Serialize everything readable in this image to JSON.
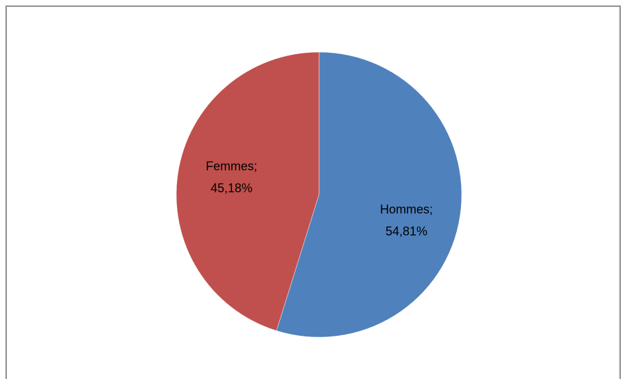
{
  "chart_data": {
    "type": "pie",
    "title": "",
    "slices": [
      {
        "name": "Hommes",
        "value": 54.81,
        "label_name": "Hommes;",
        "label_value": "54,81%",
        "color": "#4F81BD"
      },
      {
        "name": "Femmes",
        "value": 45.18,
        "label_name": "Femmes;",
        "label_value": "45,18%",
        "color": "#C0504D"
      }
    ],
    "start_angle": "12 o'clock",
    "direction": "clockwise",
    "legend": "none"
  }
}
